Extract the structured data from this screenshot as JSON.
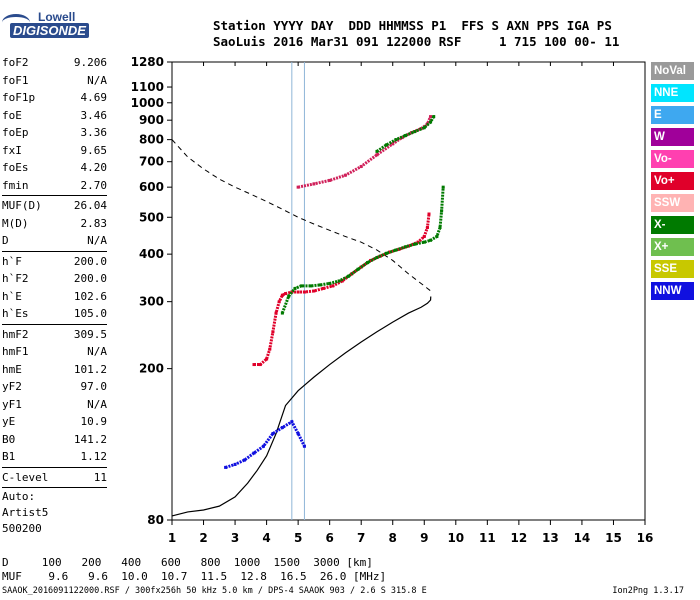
{
  "logo": {
    "line1": "Lowell",
    "line2": "DIGISONDE"
  },
  "header": {
    "labels": "Station YYYY DAY  DDD HHMMSS P1  FFS S AXN PPS IGA PS",
    "values": "SaoLuis 2016 Mar31 091 122000 RSF     1 715 100 00- 11"
  },
  "params": {
    "group1": [
      {
        "k": "foF2",
        "v": "9.206"
      },
      {
        "k": "foF1",
        "v": "N/A"
      },
      {
        "k": "foF1p",
        "v": "4.69"
      },
      {
        "k": "foE",
        "v": "3.46"
      },
      {
        "k": "foEp",
        "v": "3.36"
      },
      {
        "k": "fxI",
        "v": "9.65"
      },
      {
        "k": "foEs",
        "v": "4.20"
      },
      {
        "k": "fmin",
        "v": "2.70"
      }
    ],
    "group2": [
      {
        "k": "MUF(D)",
        "v": "26.04"
      },
      {
        "k": "M(D)",
        "v": "2.83"
      },
      {
        "k": "D",
        "v": "N/A"
      }
    ],
    "group3": [
      {
        "k": "h`F",
        "v": "200.0"
      },
      {
        "k": "h`F2",
        "v": "200.0"
      },
      {
        "k": "h`E",
        "v": "102.6"
      },
      {
        "k": "h`Es",
        "v": "105.0"
      }
    ],
    "group4": [
      {
        "k": "hmF2",
        "v": "309.5"
      },
      {
        "k": "hmF1",
        "v": "N/A"
      },
      {
        "k": "hmE",
        "v": "101.2"
      },
      {
        "k": "yF2",
        "v": "97.0"
      },
      {
        "k": "yF1",
        "v": "N/A"
      },
      {
        "k": "yE",
        "v": "10.9"
      },
      {
        "k": "B0",
        "v": "141.2"
      },
      {
        "k": "B1",
        "v": "1.12"
      }
    ],
    "group5": [
      {
        "k": "C-level",
        "v": "11"
      }
    ],
    "auto": {
      "line1": "Auto:",
      "line2": "Artist5",
      "line3": "500200"
    }
  },
  "legend": [
    {
      "label": "NoVal",
      "color": "#9a9a9a"
    },
    {
      "label": "NNE",
      "color": "#00e5ff"
    },
    {
      "label": "E",
      "color": "#3ea8f0"
    },
    {
      "label": "W",
      "color": "#a0009a"
    },
    {
      "label": "Vo-",
      "color": "#ff40b0"
    },
    {
      "label": "Vo+",
      "color": "#e0002a"
    },
    {
      "label": "SSW",
      "color": "#ffb3b3"
    },
    {
      "label": "X-",
      "color": "#007a00"
    },
    {
      "label": "X+",
      "color": "#6fbf4f"
    },
    {
      "label": "SSE",
      "color": "#c8c800"
    },
    {
      "label": "NNW",
      "color": "#1010e0"
    }
  ],
  "dmuf": {
    "d_line": "D     100   200   400   600   800  1000  1500  3000 [km]",
    "muf_line": "MUF    9.6   9.6  10.0  10.7  11.5  12.8  16.5  26.0 [MHz]"
  },
  "footer": {
    "text": "SAAOK_2016091122000.RSF / 300fx256h 50 kHz 5.0 km / DPS-4 SAAOK 903 / 2.6 S 315.8 E",
    "version": "Ion2Png 1.3.17"
  },
  "chart_data": {
    "type": "scatter",
    "xlim": [
      1,
      16
    ],
    "ylim": [
      80,
      1280
    ],
    "x_ticks": [
      1,
      2,
      3,
      4,
      5,
      6,
      7,
      8,
      9,
      10,
      11,
      12,
      13,
      14,
      15,
      16
    ],
    "y_ticks": [
      80,
      200,
      300,
      400,
      500,
      600,
      700,
      800,
      900,
      1000,
      1100,
      1280
    ],
    "y_scale": "log",
    "series": [
      {
        "name": "Vo+",
        "color": "#e0002a",
        "x": [
          3.6,
          3.8,
          4.0,
          4.1,
          4.2,
          4.3,
          4.4,
          4.5,
          4.6,
          4.8,
          5.0,
          5.2,
          5.5,
          5.8,
          6.1,
          6.4,
          6.7,
          7.0,
          7.3,
          7.6,
          7.9,
          8.2,
          8.5,
          8.8,
          9.0,
          9.1,
          9.15
        ],
        "y": [
          205,
          205,
          212,
          225,
          250,
          280,
          300,
          312,
          315,
          318,
          318,
          318,
          320,
          325,
          330,
          340,
          355,
          370,
          385,
          395,
          405,
          412,
          420,
          430,
          445,
          470,
          510
        ]
      },
      {
        "name": "X-",
        "color": "#007a00",
        "x": [
          4.5,
          4.7,
          4.9,
          5.1,
          5.4,
          5.7,
          6.0,
          6.3,
          6.6,
          6.9,
          7.2,
          7.5,
          7.8,
          8.1,
          8.4,
          8.7,
          9.0,
          9.2,
          9.4,
          9.5,
          9.55,
          9.6
        ],
        "y": [
          280,
          310,
          325,
          330,
          330,
          332,
          335,
          340,
          350,
          365,
          380,
          392,
          402,
          410,
          418,
          425,
          430,
          435,
          445,
          470,
          520,
          600
        ]
      },
      {
        "name": "Vo+ (2nd)",
        "color": "#d0205a",
        "x": [
          5.0,
          5.5,
          6.0,
          6.5,
          7.0,
          7.5,
          8.0,
          8.3,
          8.6,
          8.9,
          9.1,
          9.2
        ],
        "y": [
          600,
          612,
          625,
          645,
          680,
          730,
          780,
          810,
          835,
          855,
          880,
          920
        ]
      },
      {
        "name": "X- (2nd)",
        "color": "#007a00",
        "x": [
          7.5,
          7.8,
          8.1,
          8.4,
          8.7,
          9.0,
          9.2,
          9.3
        ],
        "y": [
          745,
          775,
          800,
          820,
          840,
          860,
          890,
          920
        ]
      },
      {
        "name": "Es",
        "color": "#1010e0",
        "x": [
          2.7,
          3.0,
          3.3,
          3.6,
          3.9,
          4.2,
          4.5,
          4.8,
          5.0,
          5.2
        ],
        "y": [
          110,
          112,
          115,
          120,
          125,
          135,
          140,
          145,
          135,
          125
        ]
      }
    ],
    "profile": {
      "x": [
        1.0,
        1.5,
        2.0,
        2.5,
        3.0,
        3.4,
        3.7,
        4.0,
        4.3,
        4.6,
        5.0,
        5.5,
        6.0,
        6.5,
        7.0,
        7.5,
        8.0,
        8.5,
        8.9,
        9.1,
        9.2,
        9.206
      ],
      "y": [
        82,
        84,
        85,
        87,
        92,
        100,
        108,
        118,
        135,
        160,
        175,
        190,
        205,
        220,
        235,
        250,
        265,
        280,
        290,
        297,
        303,
        309.5
      ]
    },
    "dashed_curve": {
      "x": [
        1.0,
        1.5,
        2.0,
        2.5,
        3.0,
        3.5,
        4.0,
        4.5,
        5.0,
        5.5,
        6.0,
        6.5,
        7.0,
        7.5,
        8.0,
        8.5,
        9.0,
        9.206
      ],
      "y": [
        800,
        720,
        670,
        630,
        600,
        575,
        550,
        525,
        500,
        480,
        462,
        445,
        430,
        410,
        385,
        355,
        330,
        320
      ]
    },
    "vertical_lines": [
      4.8,
      5.2
    ]
  }
}
